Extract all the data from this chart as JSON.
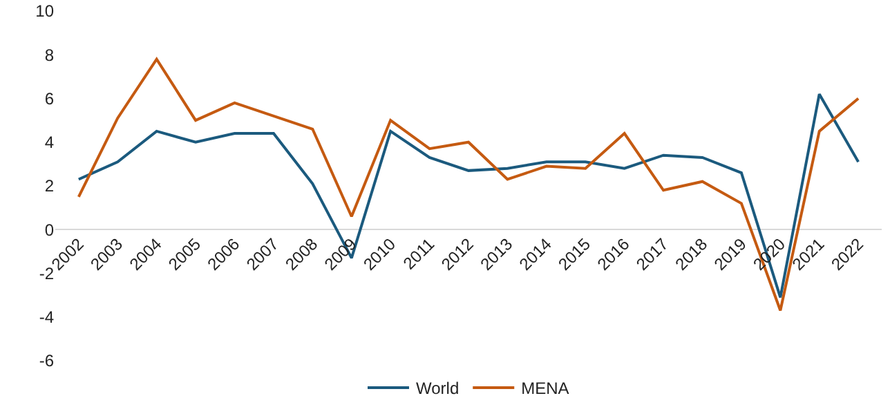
{
  "chart_data": {
    "type": "line",
    "categories": [
      "2002",
      "2003",
      "2004",
      "2005",
      "2006",
      "2007",
      "2008",
      "2009",
      "2010",
      "2011",
      "2012",
      "2013",
      "2014",
      "2015",
      "2016",
      "2017",
      "2018",
      "2019",
      "2020",
      "2021",
      "2022"
    ],
    "series": [
      {
        "name": "World",
        "color": "#1b5a7e",
        "values": [
          2.3,
          3.1,
          4.5,
          4.0,
          4.4,
          4.4,
          2.1,
          -1.3,
          4.5,
          3.3,
          2.7,
          2.8,
          3.1,
          3.1,
          2.8,
          3.4,
          3.3,
          2.6,
          -3.1,
          6.2,
          3.1
        ]
      },
      {
        "name": "MENA",
        "color": "#c55a11",
        "values": [
          1.5,
          5.1,
          7.8,
          5.0,
          5.8,
          5.2,
          4.6,
          0.6,
          5.0,
          3.7,
          4.0,
          2.3,
          2.9,
          2.8,
          4.4,
          1.8,
          2.2,
          1.2,
          -3.7,
          4.5,
          6.0
        ]
      }
    ],
    "ylim": [
      -6,
      10
    ],
    "yticks": [
      -6,
      -4,
      -2,
      0,
      2,
      4,
      6,
      8,
      10
    ],
    "grid": false,
    "legend": "bottom",
    "marker": "none",
    "line_style": "solid"
  }
}
